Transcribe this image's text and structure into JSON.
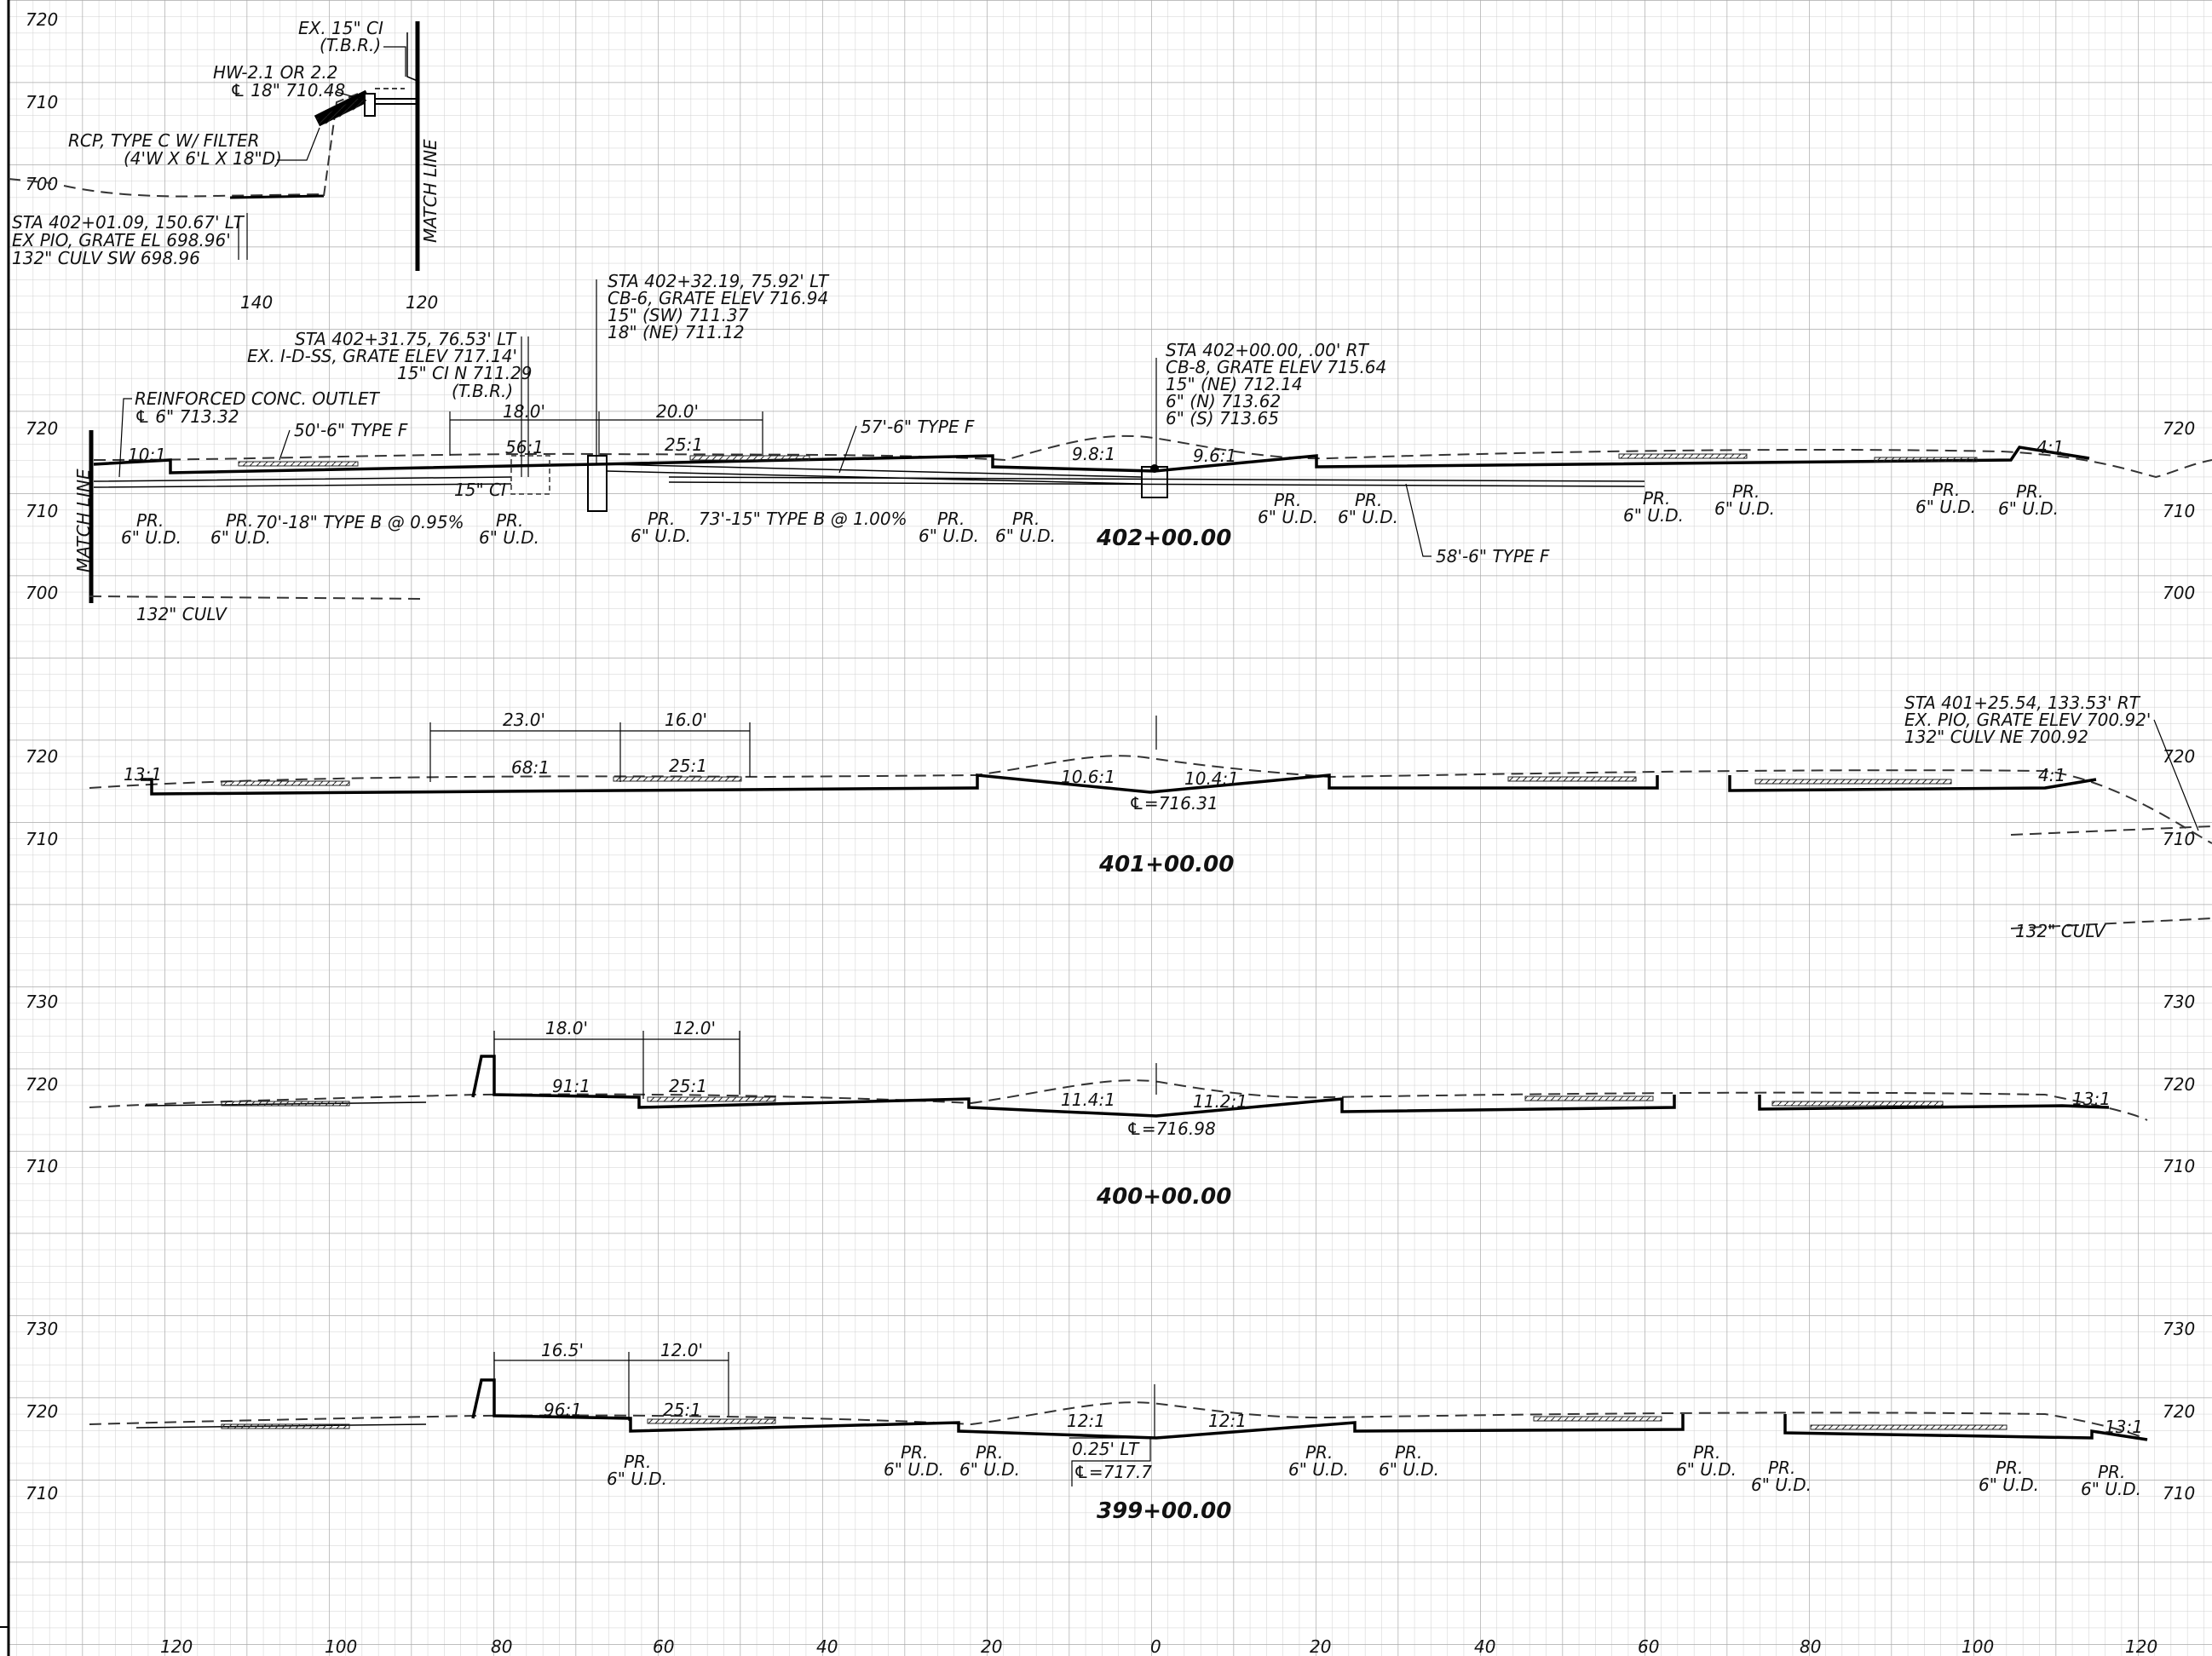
{
  "elevation_labels": {
    "top": [
      "720",
      "710",
      "700"
    ],
    "s402_left": [
      "720",
      "710",
      "700"
    ],
    "s402_right": [
      "720",
      "710",
      "700"
    ],
    "s401_left": [
      "720",
      "710"
    ],
    "s401_right": [
      "720",
      "710"
    ],
    "s400_left": [
      "730",
      "720",
      "710"
    ],
    "s400_right": [
      "730",
      "720",
      "710"
    ],
    "s399_left": [
      "730",
      "720",
      "710"
    ],
    "s399_right": [
      "730",
      "720",
      "710"
    ]
  },
  "offset_axis": [
    "120",
    "100",
    "80",
    "60",
    "40",
    "20",
    "0",
    "20",
    "40",
    "60",
    "80",
    "100",
    "120"
  ],
  "top_detail": {
    "offsets": [
      "140",
      "120"
    ],
    "match_line": "MATCH LINE",
    "ex_ci": [
      "EX. 15\" CI",
      "(T.B.R.)"
    ],
    "hw": [
      "HW-2.1 OR 2.2",
      "℄ 18\" 710.48"
    ],
    "rcp": [
      "RCP, TYPE C W/ FILTER",
      "(4'W X 6'L X 18\"D)"
    ],
    "sta_note": [
      "STA 402+01.09, 150.67' LT",
      "EX PIO, GRATE EL 698.96'",
      "132\" CULV SW 698.96"
    ]
  },
  "sections": {
    "s402": {
      "station": "402+00.00",
      "match_line": "MATCH LINE",
      "note_cb6": [
        "STA 402+32.19, 75.92' LT",
        "CB-6, GRATE ELEV 716.94",
        "15\" (SW) 711.37",
        "18\" (NE) 711.12"
      ],
      "note_idss": [
        "STA 402+31.75, 76.53' LT",
        "EX. I-D-SS, GRATE ELEV 717.14'",
        "15\" CI N 711.29",
        "(T.B.R.)"
      ],
      "note_cb8": [
        "STA 402+00.00, .00' RT",
        "CB-8, GRATE ELEV 715.64",
        "15\" (NE) 712.14",
        "6\" (N) 713.62",
        "6\" (S) 713.65"
      ],
      "outlet": [
        "REINFORCED CONC. OUTLET",
        "℄ 6\" 713.32"
      ],
      "type_f_50": "50'-6\" TYPE F",
      "type_f_57": "57'-6\" TYPE F",
      "type_f_58": "58'-6\" TYPE F",
      "dim_18": "18.0'",
      "dim_20": "20.0'",
      "slope_10": "10:1",
      "slope_56": "56:1",
      "slope_25": "25:1",
      "slope_98": "9.8:1",
      "slope_96": "9.6:1",
      "slope_4": "4:1",
      "ci_15": "15\" CI",
      "pipe_70": "70'-18\" TYPE B @ 0.95%",
      "pipe_73": "73'-15\" TYPE B @ 1.00%",
      "pr": "PR.",
      "ud": "6\" U.D.",
      "culv": "132\" CULV"
    },
    "s401": {
      "station": "401+00.00",
      "dim_23": "23.0'",
      "dim_16": "16.0'",
      "slope_13": "13:1",
      "slope_68": "68:1",
      "slope_25": "25:1",
      "slope_106": "10.6:1",
      "slope_104": "10.4:1",
      "slope_4": "4:1",
      "cl": "℄=716.31",
      "note": [
        "STA 401+25.54, 133.53' RT",
        "EX. PIO, GRATE ELEV 700.92'",
        "132\" CULV NE 700.92"
      ],
      "culv": "132\" CULV"
    },
    "s400": {
      "station": "400+00.00",
      "dim_18": "18.0'",
      "dim_12": "12.0'",
      "slope_91": "91:1",
      "slope_25": "25:1",
      "slope_114": "11.4:1",
      "slope_112": "11.2:1",
      "slope_13": "13:1",
      "cl": "℄=716.98"
    },
    "s399": {
      "station": "399+00.00",
      "dim_165": "16.5'",
      "dim_12": "12.0'",
      "slope_96": "96:1",
      "slope_25": "25:1",
      "slope_12a": "12:1",
      "slope_12b": "12:1",
      "slope_13": "13:1",
      "lt": "0.25' LT",
      "cl": "℄=717.7",
      "pr": "PR.",
      "ud": "6\" U.D."
    }
  }
}
